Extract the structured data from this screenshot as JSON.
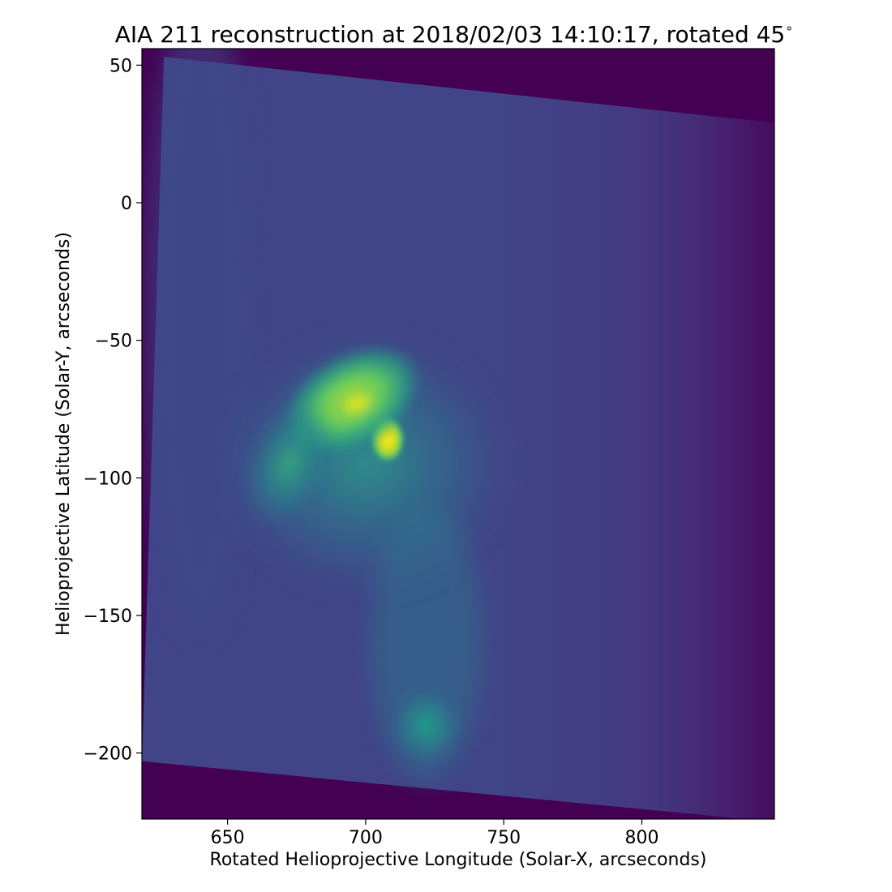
{
  "chart_data": {
    "type": "heatmap",
    "title": "AIA 211 reconstruction at 2018/02/03 14:10:17, rotated 45",
    "title_degree_symbol": "∘",
    "xlabel": "Rotated Helioprojective Longitude (Solar-X, arcseconds)",
    "ylabel": "Helioprojective Latitude (Solar-Y, arcseconds)",
    "xlim": [
      619,
      848
    ],
    "ylim": [
      -224,
      56
    ],
    "xticks": [
      650,
      700,
      750,
      800
    ],
    "xtick_labels": [
      "650",
      "700",
      "750",
      "800"
    ],
    "yticks": [
      50,
      0,
      -50,
      -100,
      -150,
      -200
    ],
    "ytick_labels": [
      "50",
      "0",
      "−50",
      "−100",
      "−150",
      "−200"
    ],
    "colormap": "viridis",
    "colors": {
      "background_dark": "#440154",
      "field_mid": "#414487",
      "loops": "#2a788e",
      "bright_core": "#fde725"
    },
    "image_boundary_corners": [
      {
        "x": 627,
        "y": 53
      },
      {
        "x": 848,
        "y": 29
      },
      {
        "x": 848,
        "y": -225
      },
      {
        "x": 619,
        "y": -203
      }
    ],
    "features": [
      {
        "name": "bright loop core",
        "x": 708,
        "y": -86,
        "intensity": 1.0
      },
      {
        "name": "loop arcade",
        "x": 695,
        "y": -72,
        "intensity": 0.85
      },
      {
        "name": "southern brightening",
        "x": 722,
        "y": -190,
        "intensity": 0.45
      },
      {
        "name": "fan loops",
        "x": 672,
        "y": -95,
        "intensity": 0.55
      }
    ],
    "grid": false
  }
}
